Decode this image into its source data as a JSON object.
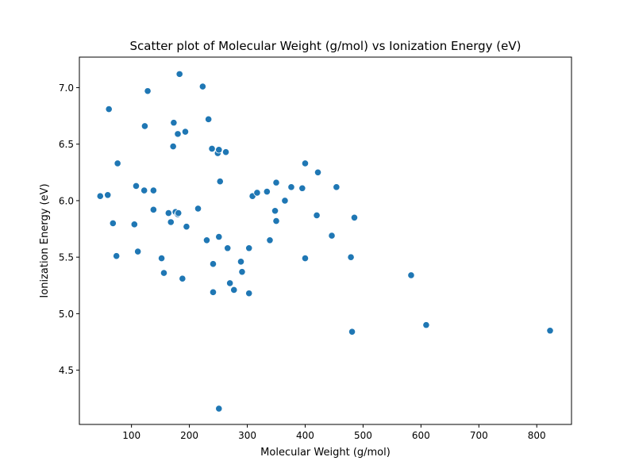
{
  "chart_data": {
    "type": "scatter",
    "title": "Scatter plot of Molecular Weight (g/mol) vs Ionization Energy (eV)",
    "xlabel": "Molecular Weight (g/mol)",
    "ylabel": "Ionization Energy (eV)",
    "xlim": [
      10,
      860
    ],
    "ylim": [
      4.02,
      7.27
    ],
    "xticks": [
      100,
      200,
      300,
      400,
      500,
      600,
      700,
      800
    ],
    "yticks": [
      4.5,
      5.0,
      5.5,
      6.0,
      6.5,
      7.0
    ],
    "xtick_labels": [
      "100",
      "200",
      "300",
      "400",
      "500",
      "600",
      "700",
      "800"
    ],
    "ytick_labels": [
      "4.5",
      "5.0",
      "5.5",
      "6.0",
      "6.5",
      "7.0"
    ],
    "grid": false,
    "marker_color": "#1f77b4",
    "marker_edge_color": "#ffffff",
    "points": [
      {
        "x": 46,
        "y": 6.04
      },
      {
        "x": 59,
        "y": 6.05
      },
      {
        "x": 61,
        "y": 6.81
      },
      {
        "x": 68,
        "y": 5.8
      },
      {
        "x": 74,
        "y": 5.51
      },
      {
        "x": 76,
        "y": 6.33
      },
      {
        "x": 105,
        "y": 5.79
      },
      {
        "x": 108,
        "y": 6.13
      },
      {
        "x": 111,
        "y": 5.55
      },
      {
        "x": 122,
        "y": 6.09
      },
      {
        "x": 123,
        "y": 6.66
      },
      {
        "x": 128,
        "y": 6.97
      },
      {
        "x": 138,
        "y": 6.09
      },
      {
        "x": 138,
        "y": 5.92
      },
      {
        "x": 152,
        "y": 5.49
      },
      {
        "x": 156,
        "y": 5.36
      },
      {
        "x": 164,
        "y": 5.89
      },
      {
        "x": 168,
        "y": 5.81
      },
      {
        "x": 172,
        "y": 6.48
      },
      {
        "x": 173,
        "y": 6.69
      },
      {
        "x": 176,
        "y": 5.9
      },
      {
        "x": 180,
        "y": 6.59
      },
      {
        "x": 180,
        "y": 5.88
      },
      {
        "x": 181,
        "y": 5.89
      },
      {
        "x": 183,
        "y": 7.12
      },
      {
        "x": 188,
        "y": 5.31
      },
      {
        "x": 193,
        "y": 6.61
      },
      {
        "x": 195,
        "y": 5.77
      },
      {
        "x": 215,
        "y": 5.93
      },
      {
        "x": 223,
        "y": 7.01
      },
      {
        "x": 230,
        "y": 5.65
      },
      {
        "x": 233,
        "y": 6.72
      },
      {
        "x": 239,
        "y": 6.46
      },
      {
        "x": 241,
        "y": 5.44
      },
      {
        "x": 241,
        "y": 5.19
      },
      {
        "x": 249,
        "y": 6.42
      },
      {
        "x": 251,
        "y": 6.45
      },
      {
        "x": 251,
        "y": 5.68
      },
      {
        "x": 251,
        "y": 4.16
      },
      {
        "x": 253,
        "y": 6.17
      },
      {
        "x": 263,
        "y": 6.43
      },
      {
        "x": 266,
        "y": 5.58
      },
      {
        "x": 270,
        "y": 5.27
      },
      {
        "x": 277,
        "y": 5.21
      },
      {
        "x": 289,
        "y": 5.46
      },
      {
        "x": 291,
        "y": 5.37
      },
      {
        "x": 303,
        "y": 5.58
      },
      {
        "x": 303,
        "y": 5.18
      },
      {
        "x": 309,
        "y": 6.04
      },
      {
        "x": 317,
        "y": 6.07
      },
      {
        "x": 334,
        "y": 6.08
      },
      {
        "x": 339,
        "y": 5.65
      },
      {
        "x": 348,
        "y": 5.91
      },
      {
        "x": 350,
        "y": 6.16
      },
      {
        "x": 350,
        "y": 5.82
      },
      {
        "x": 365,
        "y": 6.0
      },
      {
        "x": 376,
        "y": 6.12
      },
      {
        "x": 395,
        "y": 6.11
      },
      {
        "x": 400,
        "y": 6.33
      },
      {
        "x": 400,
        "y": 5.49
      },
      {
        "x": 420,
        "y": 5.87
      },
      {
        "x": 422,
        "y": 6.25
      },
      {
        "x": 446,
        "y": 5.69
      },
      {
        "x": 454,
        "y": 6.12
      },
      {
        "x": 479,
        "y": 5.5
      },
      {
        "x": 481,
        "y": 4.84
      },
      {
        "x": 485,
        "y": 5.85
      },
      {
        "x": 583,
        "y": 5.34
      },
      {
        "x": 609,
        "y": 4.9
      },
      {
        "x": 823,
        "y": 4.85
      }
    ]
  }
}
